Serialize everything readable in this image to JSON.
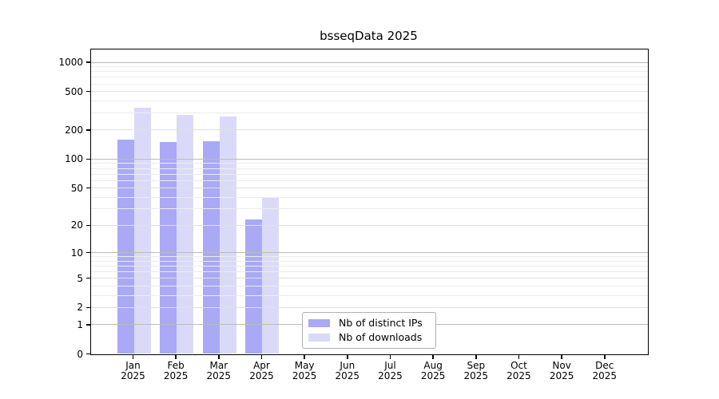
{
  "title": "bsseqData 2025",
  "chart_data": {
    "type": "bar",
    "title": "bsseqData 2025",
    "categories": [
      "Jan 2025",
      "Feb 2025",
      "Mar 2025",
      "Apr 2025",
      "May 2025",
      "Jun 2025",
      "Jul 2025",
      "Aug 2025",
      "Sep 2025",
      "Oct 2025",
      "Nov 2025",
      "Dec 2025"
    ],
    "series": [
      {
        "name": "Nb of distinct IPs",
        "color": "#a9a9f6",
        "values": [
          157,
          148,
          152,
          23,
          null,
          null,
          null,
          null,
          null,
          null,
          null,
          null
        ]
      },
      {
        "name": "Nb of downloads",
        "color": "#dadaf8",
        "values": [
          340,
          283,
          273,
          39,
          null,
          null,
          null,
          null,
          null,
          null,
          null,
          null
        ]
      }
    ],
    "y_axis": {
      "scale": "log10(value+1)",
      "ticks": [
        0,
        1,
        2,
        5,
        10,
        20,
        50,
        100,
        200,
        500,
        1000
      ],
      "ylim": [
        0,
        1400
      ],
      "grid": true
    },
    "legend_position": "lower-center",
    "colors": {
      "grid_major": "#bbbbbb",
      "grid_sub": "#e0e0e0",
      "grid_minor": "#ececec",
      "spine": "#000000"
    }
  }
}
